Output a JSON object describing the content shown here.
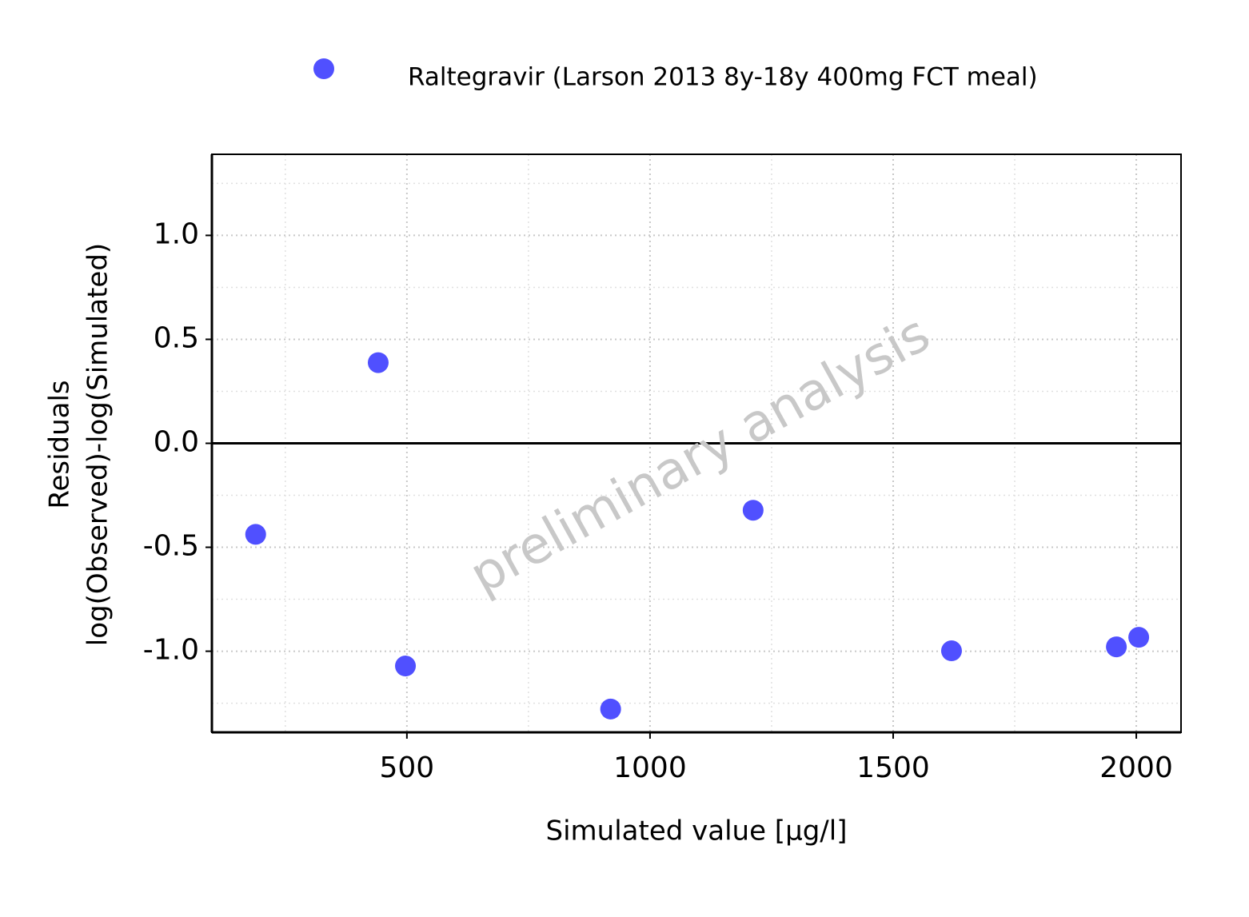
{
  "chart_data": {
    "type": "scatter",
    "xlabel": "Simulated value [µg/l]",
    "ylabel": [
      "Residuals",
      "log(Observed)-log(Simulated)"
    ],
    "watermark": "preliminary analysis",
    "xlim": [
      99,
      2092
    ],
    "ylim": [
      -1.39,
      1.39
    ],
    "xticks": [
      500,
      1000,
      1500,
      2000
    ],
    "yticks": [
      {
        "value": -1,
        "label": "-1.0"
      },
      {
        "value": -0.5,
        "label": "-0.5"
      },
      {
        "value": 0,
        "label": "0.0"
      },
      {
        "value": 0.5,
        "label": "0.5"
      },
      {
        "value": 1,
        "label": "1.0"
      }
    ],
    "x_minor_grid": [
      250,
      750,
      1250,
      1750
    ],
    "y_minor_grid": [
      -1.25,
      -0.75,
      -0.25,
      0.25,
      0.75,
      1.25
    ],
    "grid": true,
    "hline": 0,
    "legend": "top",
    "series": [
      {
        "name": "Raltegravir (Larson 2013 8y-18y 400mg FCT meal)",
        "color": "#5050ff",
        "x": [
          189,
          441,
          497,
          919,
          1212,
          1620,
          1959,
          2005
        ],
        "values": [
          -0.438,
          0.388,
          -1.071,
          -1.278,
          -0.322,
          -0.998,
          -0.979,
          -0.933
        ]
      }
    ]
  }
}
